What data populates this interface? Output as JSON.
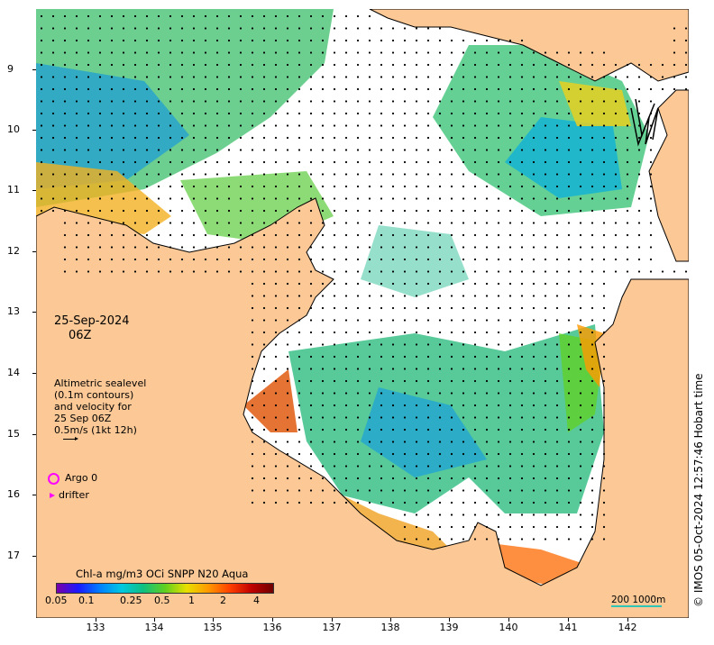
{
  "date_label": "25-Sep-2024",
  "time_label": "06Z",
  "velocity_legend": {
    "lines": [
      "Altimetric sealevel",
      "(0.1m contours)",
      "and velocity for",
      "25 Sep 06Z",
      "0.5m/s (1kt 12h)"
    ]
  },
  "markers": {
    "argo_label": "Argo 0",
    "drifter_label": "drifter",
    "argo_color": "#ff00ff",
    "drifter_color": "#ff00ff"
  },
  "colorbar": {
    "title": "Chl-a mg/m3 OCi SNPP N20 Aqua",
    "ticks": [
      "0.05",
      "0.1",
      "0.25",
      "0.5",
      "1",
      "2",
      "4"
    ],
    "colors": [
      "#7a00a8",
      "#1a1aff",
      "#0080ff",
      "#00c8e0",
      "#10c080",
      "#60d020",
      "#e8e000",
      "#ff9900",
      "#ff4000",
      "#c00000",
      "#700000"
    ]
  },
  "scale": {
    "label": "200  1000m",
    "color": "#2ec4b6"
  },
  "copyright": "© IMOS 05-Oct-2024 12:57:46 Hobart time",
  "axes": {
    "x_ticks": [
      "133",
      "134",
      "135",
      "136",
      "137",
      "138",
      "139",
      "140",
      "141",
      "142"
    ],
    "y_ticks": [
      "9",
      "10",
      "11",
      "12",
      "13",
      "14",
      "15",
      "16",
      "17"
    ]
  },
  "colors": {
    "land": "#fbc896",
    "ocean_nodata": "#ffffff",
    "coastline": "#000000"
  }
}
